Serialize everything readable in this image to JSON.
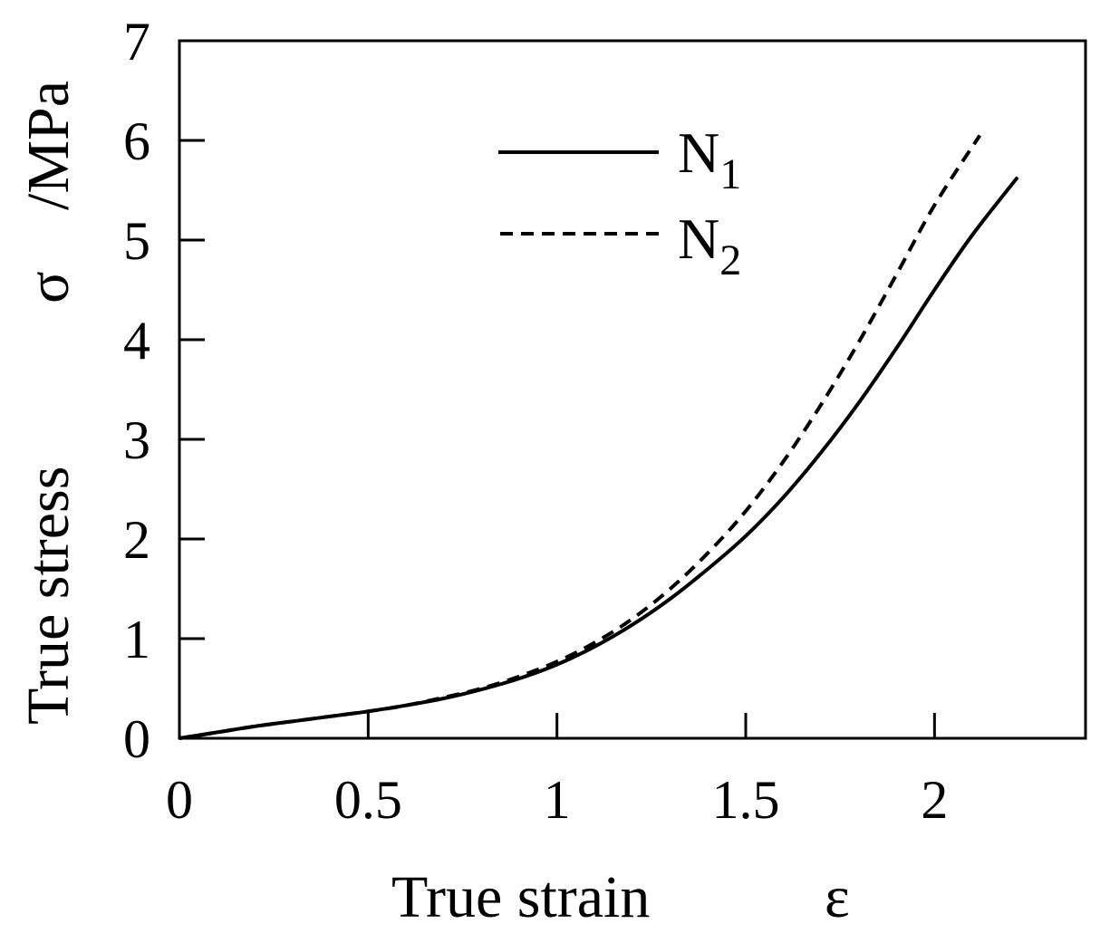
{
  "chart_data": {
    "type": "line",
    "title": "",
    "xlabel": "True strain",
    "xlabel_symbol": "ε",
    "ylabel": "True stress",
    "ylabel_symbol": "σ",
    "ylabel_unit": "/MPa",
    "xlim": [
      0,
      2.4
    ],
    "ylim": [
      0,
      7
    ],
    "xticks": [
      "0",
      "0.5",
      "1",
      "1.5",
      "2"
    ],
    "xtick_values": [
      0,
      0.5,
      1,
      1.5,
      2
    ],
    "yticks": [
      "0",
      "1",
      "2",
      "3",
      "4",
      "5",
      "6",
      "7"
    ],
    "ytick_values": [
      0,
      1,
      2,
      3,
      4,
      5,
      6,
      7
    ],
    "grid": false,
    "legend_position": "top-center",
    "series": [
      {
        "name": "N",
        "name_subscript": "1",
        "style": "solid",
        "color": "#000000",
        "x": [
          0,
          0.1,
          0.2,
          0.3,
          0.4,
          0.5,
          0.6,
          0.7,
          0.8,
          0.9,
          1.0,
          1.1,
          1.2,
          1.3,
          1.4,
          1.5,
          1.6,
          1.7,
          1.8,
          1.9,
          2.0,
          2.1,
          2.22
        ],
        "y": [
          0,
          0.06,
          0.12,
          0.17,
          0.22,
          0.27,
          0.33,
          0.4,
          0.49,
          0.6,
          0.74,
          0.92,
          1.14,
          1.4,
          1.7,
          2.03,
          2.42,
          2.87,
          3.37,
          3.92,
          4.5,
          5.05,
          5.63
        ]
      },
      {
        "name": "N",
        "name_subscript": "2",
        "style": "dashed",
        "color": "#000000",
        "x": [
          0,
          0.1,
          0.2,
          0.3,
          0.4,
          0.5,
          0.6,
          0.7,
          0.8,
          0.9,
          1.0,
          1.1,
          1.2,
          1.3,
          1.4,
          1.5,
          1.6,
          1.7,
          1.8,
          1.9,
          2.0,
          2.12
        ],
        "y": [
          0,
          0.06,
          0.12,
          0.17,
          0.22,
          0.27,
          0.33,
          0.41,
          0.5,
          0.62,
          0.77,
          0.96,
          1.2,
          1.5,
          1.86,
          2.28,
          2.78,
          3.35,
          3.98,
          4.66,
          5.35,
          6.05
        ]
      }
    ]
  }
}
